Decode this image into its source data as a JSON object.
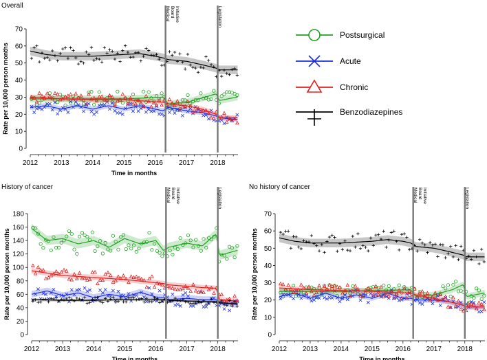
{
  "legend": {
    "items": [
      {
        "label": "Postsurgical",
        "color": "#20a020",
        "marker": "circle"
      },
      {
        "label": "Acute",
        "color": "#1a2ee0",
        "marker": "x"
      },
      {
        "label": "Chronic",
        "color": "#e02020",
        "marker": "triangle"
      },
      {
        "label": "Benzodiazepines",
        "color": "#000000",
        "marker": "plus"
      }
    ]
  },
  "chart_data": [
    {
      "type": "line",
      "title": "Overall",
      "xlabel": "Time in months",
      "ylabel": "Rate per 10,000 person months",
      "xlim": [
        2012,
        2018.65
      ],
      "ylim": [
        0,
        70
      ],
      "yticks": [
        0,
        10,
        20,
        30,
        40,
        50,
        60,
        70
      ],
      "xticks": [
        2012,
        2013,
        2014,
        2015,
        2016,
        2017,
        2018
      ],
      "events": [
        {
          "x": 2016.33,
          "label_lines": [
            "Medical",
            "Board",
            "Initiative"
          ]
        },
        {
          "x": 2018.0,
          "label_lines": [
            "Legislation"
          ]
        }
      ],
      "series": [
        {
          "name": "Postsurgical",
          "x": [
            2012,
            2013,
            2014,
            2015,
            2016.25,
            2016.42,
            2017,
            2017.6,
            2017.95,
            2018.05,
            2018.6
          ],
          "values": [
            29,
            29,
            29,
            29,
            30,
            26,
            27,
            30,
            32,
            28,
            30
          ],
          "band": 2
        },
        {
          "name": "Acute",
          "x": [
            2012,
            2012.5,
            2013,
            2013.5,
            2014,
            2014.5,
            2015,
            2015.5,
            2016,
            2016.25,
            2016.42,
            2017,
            2017.5,
            2017.95,
            2018.05,
            2018.6
          ],
          "values": [
            24,
            25,
            23,
            25,
            23,
            25,
            23,
            25,
            23,
            22,
            24,
            22,
            21,
            19,
            18,
            17
          ],
          "band": 1.5
        },
        {
          "name": "Chronic",
          "x": [
            2012,
            2013,
            2014,
            2015,
            2016.25,
            2016.42,
            2017,
            2017.5,
            2017.95,
            2018.05,
            2018.6
          ],
          "values": [
            30,
            29,
            28.5,
            28.5,
            27,
            26,
            25,
            23,
            20,
            18,
            18
          ],
          "band": 1.5
        },
        {
          "name": "Benzodiazepines",
          "x": [
            2012,
            2012.5,
            2013,
            2014,
            2015,
            2015.5,
            2016,
            2016.25,
            2016.42,
            2017,
            2017.5,
            2017.95,
            2018.05,
            2018.6
          ],
          "values": [
            57,
            55,
            54,
            54,
            55,
            55.5,
            54,
            53,
            52,
            51,
            49,
            47,
            46,
            46
          ],
          "band": 2.5
        }
      ]
    },
    {
      "type": "line",
      "title": "History of cancer",
      "xlabel": "Time in months",
      "ylabel": "Rate per 10,000 person months",
      "xlim": [
        2012,
        2018.65
      ],
      "ylim": [
        0,
        180
      ],
      "yticks": [
        0,
        20,
        40,
        60,
        80,
        100,
        120,
        140,
        160,
        180
      ],
      "xticks": [
        2012,
        2013,
        2014,
        2015,
        2016,
        2017,
        2018
      ],
      "events": [
        {
          "x": 2016.33,
          "label_lines": [
            "Medical",
            "Board",
            "Initiative"
          ]
        },
        {
          "x": 2018.0,
          "label_lines": [
            "Legislation"
          ]
        }
      ],
      "series": [
        {
          "name": "Postsurgical",
          "x": [
            2012,
            2012.5,
            2013,
            2013.5,
            2014,
            2014.5,
            2015,
            2015.5,
            2016,
            2016.25,
            2016.42,
            2017,
            2017.5,
            2017.95,
            2018.05,
            2018.6
          ],
          "values": [
            158,
            140,
            143,
            135,
            140,
            130,
            143,
            135,
            140,
            125,
            130,
            136,
            132,
            150,
            118,
            125
          ],
          "band": 7
        },
        {
          "name": "Acute",
          "x": [
            2012,
            2012.5,
            2013,
            2013.5,
            2014,
            2014.5,
            2015,
            2015.5,
            2016,
            2016.25,
            2016.42,
            2017,
            2017.5,
            2017.95,
            2018.05,
            2018.6
          ],
          "values": [
            60,
            65,
            58,
            62,
            55,
            60,
            56,
            63,
            56,
            55,
            52,
            54,
            52,
            52,
            48,
            45
          ],
          "band": 5
        },
        {
          "name": "Chronic",
          "x": [
            2012,
            2013,
            2014,
            2015,
            2016.25,
            2016.42,
            2017,
            2017.5,
            2017.95,
            2018.05,
            2018.6
          ],
          "values": [
            95,
            88,
            85,
            82,
            76,
            74,
            72,
            70,
            69,
            52,
            50
          ],
          "band": 4
        },
        {
          "name": "Benzodiazepines",
          "x": [
            2012,
            2013,
            2014,
            2015,
            2016.25,
            2016.42,
            2017,
            2017.95,
            2018.05,
            2018.6
          ],
          "values": [
            52,
            51,
            51,
            52,
            52,
            51,
            50,
            49,
            47,
            46
          ],
          "band": 2
        }
      ]
    },
    {
      "type": "line",
      "title": "No history of cancer",
      "xlabel": "Time in months",
      "ylabel": "Rate per 10,000 person months",
      "xlim": [
        2012,
        2018.65
      ],
      "ylim": [
        0,
        70
      ],
      "yticks": [
        0,
        10,
        20,
        30,
        40,
        50,
        60,
        70
      ],
      "xticks": [
        2012,
        2013,
        2014,
        2015,
        2016,
        2017,
        2018
      ],
      "events": [
        {
          "x": 2016.33,
          "label_lines": [
            "Medical",
            "Board",
            "Initiative"
          ]
        },
        {
          "x": 2018.0,
          "label_lines": [
            "Legislation"
          ]
        }
      ],
      "series": [
        {
          "name": "Postsurgical",
          "x": [
            2012,
            2013,
            2014,
            2015,
            2016.25,
            2016.42,
            2017,
            2017.6,
            2017.95,
            2018.05,
            2018.6
          ],
          "values": [
            25,
            25,
            25,
            25.5,
            26,
            22,
            23,
            26,
            29,
            22,
            24
          ],
          "band": 1.8
        },
        {
          "name": "Acute",
          "x": [
            2012,
            2012.5,
            2013,
            2013.5,
            2014,
            2014.5,
            2015,
            2015.5,
            2016,
            2016.25,
            2016.42,
            2017,
            2017.5,
            2017.95,
            2018.05,
            2018.6
          ],
          "values": [
            22,
            24,
            21,
            24,
            21,
            23,
            21,
            24,
            21,
            21,
            20,
            20,
            19,
            17,
            16,
            16
          ],
          "band": 1.5
        },
        {
          "name": "Chronic",
          "x": [
            2012,
            2013,
            2014,
            2015,
            2016.25,
            2016.42,
            2017,
            2017.5,
            2017.95,
            2018.05,
            2018.6
          ],
          "values": [
            27,
            26,
            25.5,
            25,
            24,
            23,
            21,
            19,
            17,
            16,
            16
          ],
          "band": 1.5
        },
        {
          "name": "Benzodiazepines",
          "x": [
            2012,
            2012.5,
            2013,
            2014,
            2015,
            2015.5,
            2016,
            2016.25,
            2016.42,
            2017,
            2017.5,
            2017.95,
            2018.05,
            2018.6
          ],
          "values": [
            56,
            54,
            53,
            53,
            54,
            55,
            54,
            53,
            51,
            50,
            48,
            46,
            45,
            45
          ],
          "band": 2.5
        }
      ]
    }
  ]
}
